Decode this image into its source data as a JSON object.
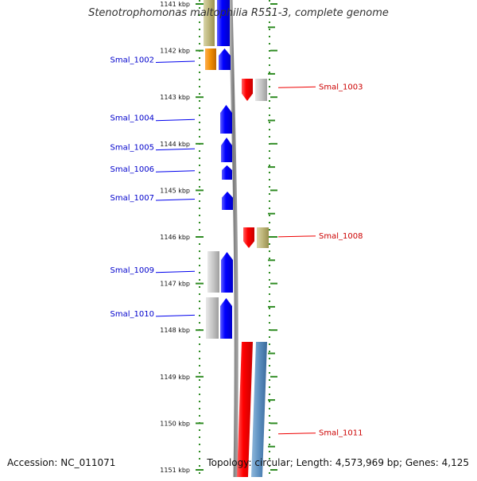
{
  "title": "Stenotrophomonas maltophilia R551-3, complete genome",
  "footer": {
    "accession": "Accession: NC_011071",
    "summary": "Topology: circular; Length: 4,573,969 bp; Genes: 4,125"
  },
  "colors": {
    "forward_strand": "#0000ee",
    "reverse_strand": "#ee0000",
    "tick": "#2e8b22",
    "backbone": "#808080"
  },
  "axis": {
    "unit": "kbp",
    "ticks": [
      {
        "kbp": 1141,
        "label": "1141 kbp"
      },
      {
        "kbp": 1142,
        "label": "1142 kbp"
      },
      {
        "kbp": 1143,
        "label": "1143 kbp"
      },
      {
        "kbp": 1144,
        "label": "1144 kbp"
      },
      {
        "kbp": 1145,
        "label": "1145 kbp"
      },
      {
        "kbp": 1146,
        "label": "1146 kbp"
      },
      {
        "kbp": 1147,
        "label": "1147 kbp"
      },
      {
        "kbp": 1148,
        "label": "1148 kbp"
      },
      {
        "kbp": 1149,
        "label": "1149 kbp"
      },
      {
        "kbp": 1150,
        "label": "1150 kbp"
      },
      {
        "kbp": 1151,
        "label": "1151 kbp"
      }
    ]
  },
  "labels": [
    {
      "name": "Smal_1002",
      "strand": "forward",
      "kbp": 1142.22
    },
    {
      "name": "Smal_1003",
      "strand": "reverse",
      "kbp": 1142.78
    },
    {
      "name": "Smal_1004",
      "strand": "forward",
      "kbp": 1143.47
    },
    {
      "name": "Smal_1005",
      "strand": "forward",
      "kbp": 1144.1
    },
    {
      "name": "Smal_1006",
      "strand": "forward",
      "kbp": 1144.57
    },
    {
      "name": "Smal_1007",
      "strand": "forward",
      "kbp": 1145.18
    },
    {
      "name": "Smal_1008",
      "strand": "reverse",
      "kbp": 1145.98
    },
    {
      "name": "Smal_1009",
      "strand": "forward",
      "kbp": 1146.73
    },
    {
      "name": "Smal_1010",
      "strand": "forward",
      "kbp": 1147.67
    },
    {
      "name": "Smal_1011",
      "strand": "reverse",
      "kbp": 1150.21
    }
  ]
}
